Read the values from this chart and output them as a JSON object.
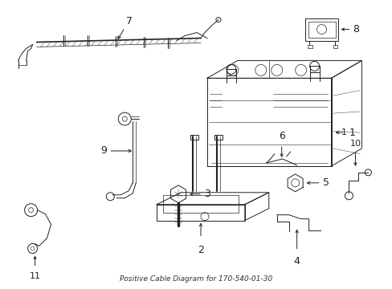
{
  "title": "Positive Cable Diagram for 170-540-01-30",
  "bg_color": "#ffffff",
  "line_color": "#222222",
  "fig_width": 4.89,
  "fig_height": 3.6,
  "dpi": 100
}
